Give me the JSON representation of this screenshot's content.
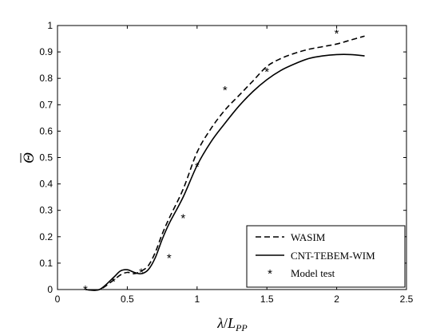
{
  "chart_data": {
    "type": "line",
    "title": "",
    "xlabel": "λ/L_PP",
    "ylabel": "Θ̄",
    "xlim": [
      0,
      2.5
    ],
    "ylim": [
      0,
      1
    ],
    "x_ticks": [
      "0",
      "0.5",
      "1",
      "1.5",
      "2",
      "2.5"
    ],
    "y_ticks": [
      "0",
      "0.1",
      "0.2",
      "0.3",
      "0.4",
      "0.5",
      "0.6",
      "0.7",
      "0.8",
      "0.9",
      "1"
    ],
    "grid": false,
    "legend_position": "bottom-right",
    "series": [
      {
        "name": "WASIM",
        "style": "dashed",
        "color": "#000000",
        "x": [
          0.2,
          0.3,
          0.4,
          0.45,
          0.5,
          0.55,
          0.6,
          0.65,
          0.7,
          0.75,
          0.8,
          0.9,
          1.0,
          1.1,
          1.2,
          1.3,
          1.4,
          1.5,
          1.6,
          1.7,
          1.8,
          1.9,
          2.0,
          2.1,
          2.2
        ],
        "y": [
          0.0,
          0.0,
          0.035,
          0.055,
          0.065,
          0.06,
          0.07,
          0.09,
          0.14,
          0.21,
          0.27,
          0.38,
          0.52,
          0.61,
          0.68,
          0.735,
          0.79,
          0.845,
          0.875,
          0.895,
          0.91,
          0.92,
          0.93,
          0.945,
          0.96
        ]
      },
      {
        "name": "CNT-TEBEM-WIM",
        "style": "solid",
        "color": "#000000",
        "x": [
          0.2,
          0.3,
          0.4,
          0.45,
          0.5,
          0.55,
          0.6,
          0.65,
          0.7,
          0.75,
          0.8,
          0.9,
          1.0,
          1.1,
          1.2,
          1.3,
          1.4,
          1.5,
          1.6,
          1.7,
          1.8,
          1.9,
          2.0,
          2.1,
          2.2
        ],
        "y": [
          0.0,
          0.0,
          0.045,
          0.07,
          0.075,
          0.065,
          0.06,
          0.075,
          0.12,
          0.19,
          0.25,
          0.35,
          0.47,
          0.56,
          0.63,
          0.695,
          0.75,
          0.795,
          0.83,
          0.855,
          0.875,
          0.885,
          0.89,
          0.89,
          0.885
        ]
      },
      {
        "name": "Model test",
        "style": "markers",
        "color": "#000000",
        "x": [
          0.2,
          0.4,
          0.6,
          0.8,
          0.9,
          1.0,
          1.2,
          1.5,
          2.0
        ],
        "y": [
          0.0,
          0.03,
          0.065,
          0.12,
          0.27,
          0.465,
          0.755,
          0.825,
          0.97
        ]
      }
    ]
  }
}
